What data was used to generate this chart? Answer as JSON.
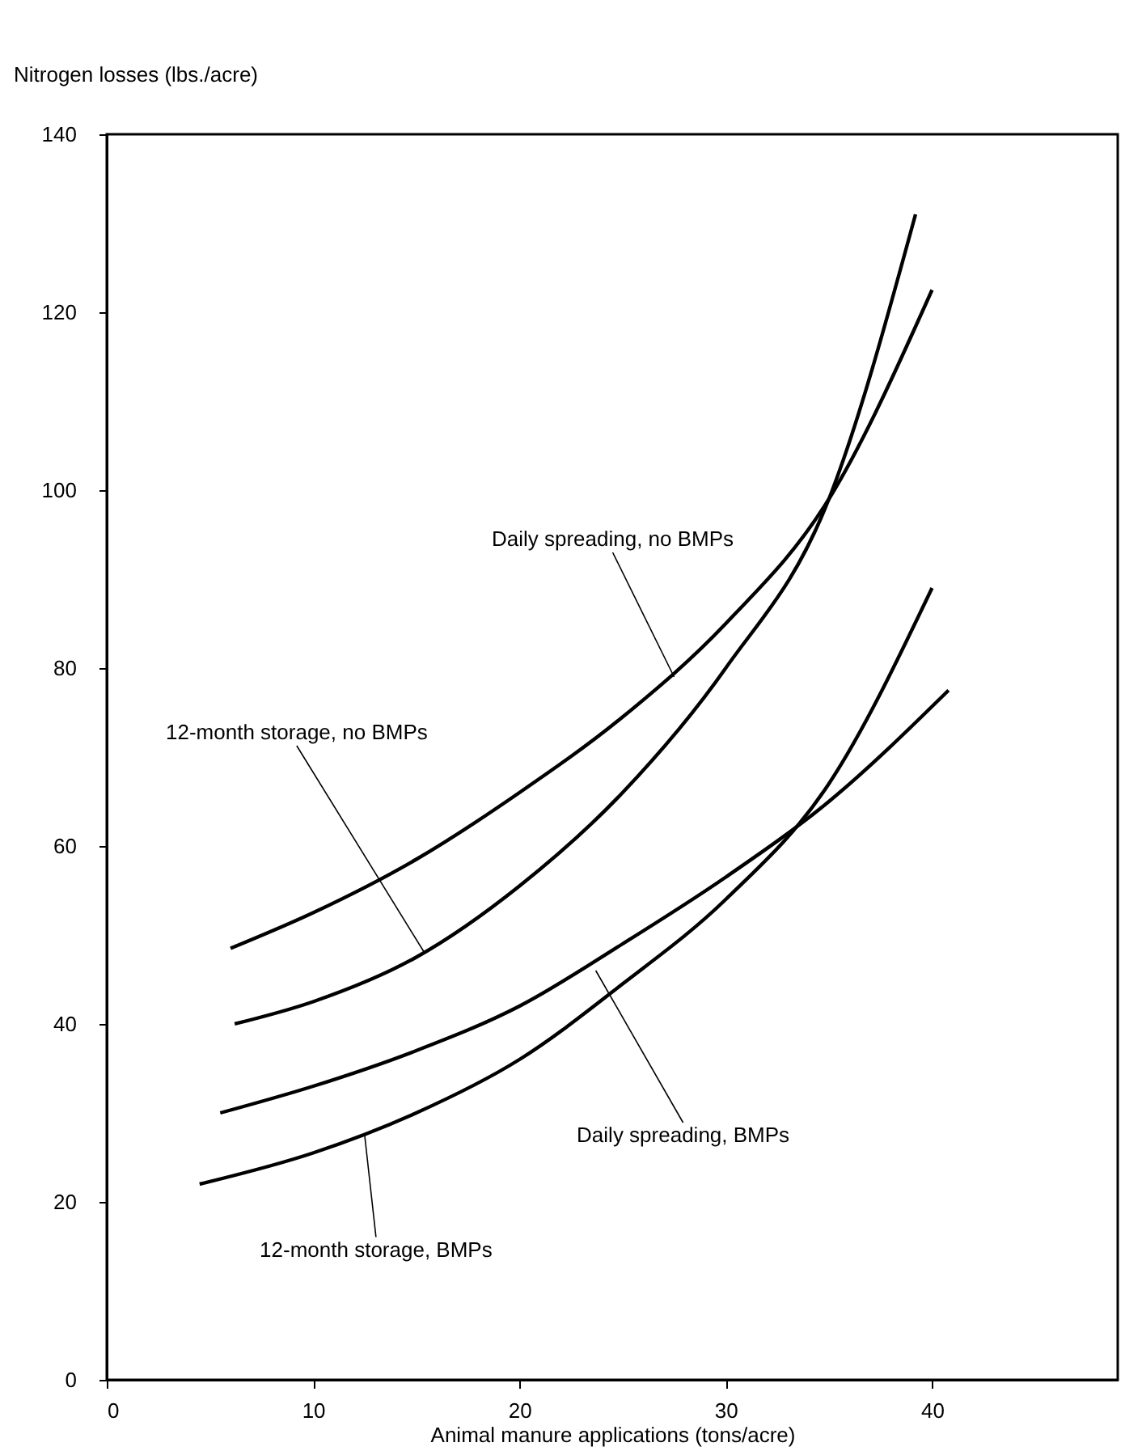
{
  "chart_data": {
    "type": "line",
    "xlabel": "Animal manure applications (tons/acre)",
    "ylabel": "Nitrogen losses (lbs./acre)",
    "xlim": [
      0,
      49
    ],
    "xticks": [
      0,
      10,
      20,
      30,
      40
    ],
    "ylim": [
      0,
      140
    ],
    "yticks": [
      0,
      20,
      40,
      60,
      80,
      100,
      120,
      140
    ],
    "grid": false,
    "marker": "none",
    "line_style": "solid",
    "series": [
      {
        "color": "#000000",
        "x": [
          6,
          10,
          15,
          20,
          25,
          30,
          35,
          40
        ],
        "values": [
          48.5,
          52.5,
          58.5,
          66,
          74.5,
          85,
          99,
          122.5
        ]
      },
      {
        "color": "#000000",
        "x": [
          6.2,
          10,
          15,
          20,
          25,
          30,
          35,
          39.2
        ],
        "values": [
          40,
          42.5,
          47.5,
          55.5,
          66,
          80,
          99,
          131
        ]
      },
      {
        "color": "#000000",
        "x": [
          5.5,
          10,
          15,
          20,
          25,
          30,
          35,
          40.8
        ],
        "values": [
          30,
          33,
          37,
          42,
          49,
          56.5,
          65,
          77.5
        ]
      },
      {
        "color": "#000000",
        "x": [
          4.5,
          10,
          15,
          20,
          25,
          30,
          35,
          40
        ],
        "values": [
          22,
          25.5,
          30,
          36,
          44.5,
          54,
          67,
          89
        ]
      }
    ],
    "annotations": [
      {
        "text": "Daily spreading, no BMPs",
        "x": 27.5,
        "y": 79
      },
      {
        "text": "12-month storage, no BMPs",
        "x": 15.4,
        "y": 48
      },
      {
        "text": "Daily spreading, BMPs",
        "x": 23.7,
        "y": 46
      },
      {
        "text": "12-month storage, BMPs",
        "x": 12.5,
        "y": 27.5
      }
    ]
  }
}
